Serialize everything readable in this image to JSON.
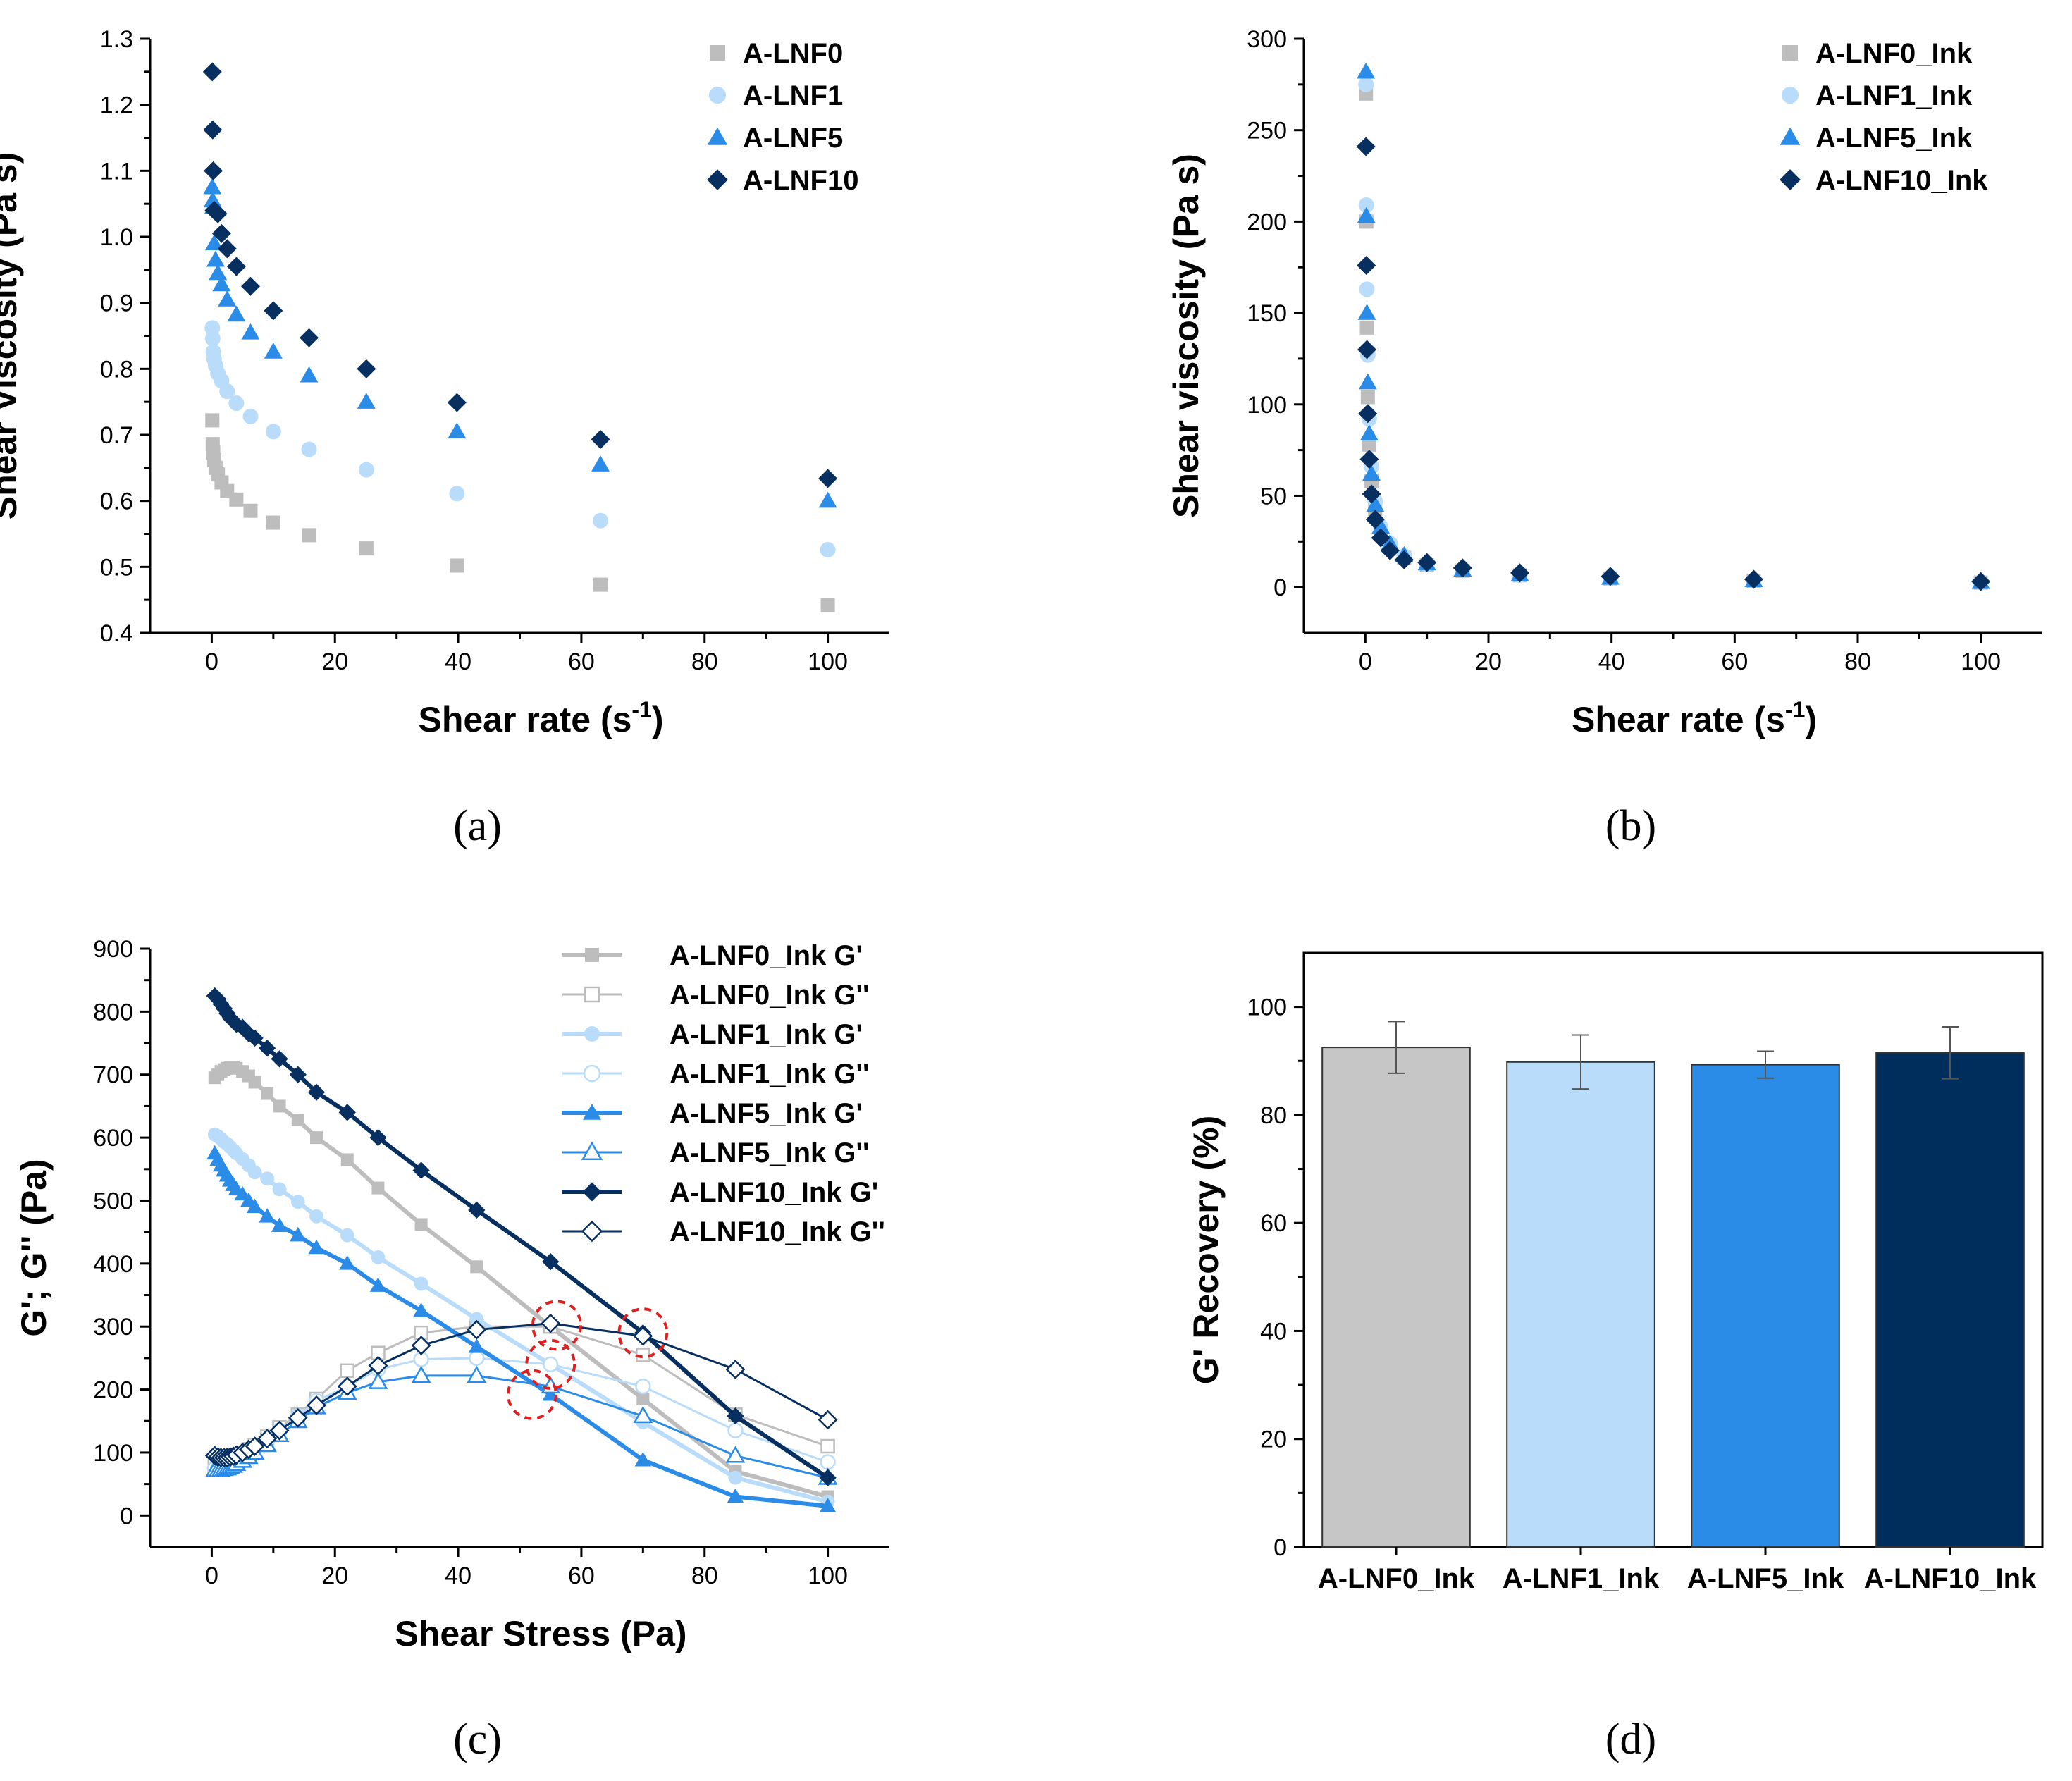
{
  "figure": {
    "colors": {
      "LNF0": "#bdbdbd",
      "LNF1": "#b9dcfa",
      "LNF5": "#2b8ce8",
      "LNF10": "#072f5f",
      "circle": "#e02020"
    }
  },
  "chart_data": [
    {
      "id": "a",
      "type": "scatter",
      "panel_label": "(a)",
      "xlabel": "Shear rate (s",
      "xlabel_sup": "-1",
      "xlabel_end": ")",
      "ylabel": "Shear Viscosity (Pa s)",
      "xlim": [
        -10,
        110
      ],
      "ylim": [
        0.4,
        1.3
      ],
      "xticks": [
        0,
        20,
        40,
        60,
        80,
        100
      ],
      "xtick_labels": [
        "0",
        "20",
        "40",
        "60",
        "80",
        "100"
      ],
      "yticks": [
        0.4,
        0.5,
        0.6,
        0.7,
        0.8,
        0.9,
        1.0,
        1.1,
        1.2,
        1.3
      ],
      "ytick_labels": [
        "0.4",
        "0.5",
        "0.6",
        "0.7",
        "0.8",
        "0.9",
        "1.0",
        "1.1",
        "1.2",
        "1.3"
      ],
      "legend_position": "top-right",
      "series": [
        {
          "name": "A-LNF0",
          "marker": "square",
          "color": "#bdbdbd",
          "x": [
            0.1,
            0.16,
            0.25,
            0.4,
            0.63,
            1,
            1.6,
            2.5,
            4,
            6.3,
            10,
            15.8,
            25.1,
            39.8,
            63.1,
            100
          ],
          "y": [
            0.722,
            0.686,
            0.673,
            0.662,
            0.65,
            0.64,
            0.628,
            0.615,
            0.602,
            0.585,
            0.567,
            0.548,
            0.528,
            0.502,
            0.473,
            0.442
          ]
        },
        {
          "name": "A-LNF1",
          "marker": "circle",
          "color": "#b9dcfa",
          "x": [
            0.1,
            0.16,
            0.25,
            0.4,
            0.63,
            1,
            1.6,
            2.5,
            4,
            6.3,
            10,
            15.8,
            25.1,
            39.8,
            63.1,
            100
          ],
          "y": [
            0.862,
            0.846,
            0.826,
            0.815,
            0.805,
            0.793,
            0.782,
            0.766,
            0.748,
            0.728,
            0.705,
            0.678,
            0.647,
            0.611,
            0.57,
            0.526
          ]
        },
        {
          "name": "A-LNF5",
          "marker": "triangle",
          "color": "#2b8ce8",
          "x": [
            0.1,
            0.16,
            0.25,
            0.4,
            0.63,
            1,
            1.6,
            2.5,
            4,
            6.3,
            10,
            15.8,
            25.1,
            39.8,
            63.1,
            100
          ],
          "y": [
            1.075,
            1.055,
            1.045,
            0.99,
            0.965,
            0.945,
            0.928,
            0.905,
            0.882,
            0.855,
            0.826,
            0.79,
            0.75,
            0.705,
            0.655,
            0.6
          ]
        },
        {
          "name": "A-LNF10",
          "marker": "diamond",
          "color": "#072f5f",
          "x": [
            0.1,
            0.16,
            0.25,
            0.4,
            0.63,
            1,
            1.6,
            2.5,
            4,
            6.3,
            10,
            15.8,
            25.1,
            39.8,
            63.1,
            100
          ],
          "y": [
            1.25,
            1.162,
            1.1,
            1.04,
            1.038,
            1.035,
            1.005,
            0.982,
            0.955,
            0.925,
            0.888,
            0.847,
            0.8,
            0.749,
            0.693,
            0.634
          ]
        }
      ]
    },
    {
      "id": "b",
      "type": "scatter",
      "panel_label": "(b)",
      "xlabel": "Shear rate (s",
      "xlabel_sup": "-1",
      "xlabel_end": ")",
      "ylabel": "Shear viscosity (Pa s)",
      "xlim": [
        -10,
        110
      ],
      "ylim": [
        -25,
        300
      ],
      "xticks": [
        0,
        20,
        40,
        60,
        80,
        100
      ],
      "xtick_labels": [
        "0",
        "20",
        "40",
        "60",
        "80",
        "100"
      ],
      "yticks": [
        0,
        50,
        100,
        150,
        200,
        250,
        300
      ],
      "ytick_labels": [
        "0",
        "50",
        "100",
        "150",
        "200",
        "250",
        "300"
      ],
      "legend_position": "top-right",
      "series": [
        {
          "name": "A-LNF0_Ink",
          "marker": "square",
          "color": "#bdbdbd",
          "x": [
            0.1,
            0.16,
            0.25,
            0.4,
            0.63,
            1,
            1.6,
            2.5,
            4,
            6.3,
            10,
            15.8,
            25.1,
            39.8,
            63.1,
            100
          ],
          "y": [
            270,
            200,
            142,
            104,
            78,
            58,
            42,
            30,
            22,
            16,
            12,
            9,
            6.5,
            4.8,
            3.5,
            2.5
          ]
        },
        {
          "name": "A-LNF1_Ink",
          "marker": "circle",
          "color": "#b9dcfa",
          "x": [
            0.1,
            0.16,
            0.25,
            0.4,
            0.63,
            1,
            1.6,
            2.5,
            4,
            6.3,
            10,
            15.8,
            25.1,
            39.8,
            63.1,
            100
          ],
          "y": [
            275,
            209,
            163,
            127,
            92,
            66,
            47,
            33,
            24,
            17,
            12.5,
            9.2,
            6.7,
            4.9,
            3.6,
            2.6
          ]
        },
        {
          "name": "A-LNF5_Ink",
          "marker": "triangle",
          "color": "#2b8ce8",
          "x": [
            0.1,
            0.16,
            0.25,
            0.4,
            0.63,
            1,
            1.6,
            2.5,
            4,
            6.3,
            10,
            15.8,
            25.1,
            39.8,
            63.1,
            100
          ],
          "y": [
            282,
            203,
            150,
            112,
            84,
            62,
            45,
            33,
            24,
            17.5,
            13,
            9.6,
            7,
            5.1,
            3.8,
            2.8
          ]
        },
        {
          "name": "A-LNF10_Ink",
          "marker": "diamond",
          "color": "#072f5f",
          "x": [
            0.1,
            0.16,
            0.25,
            0.4,
            0.63,
            1,
            1.6,
            2.5,
            4,
            6.3,
            10,
            15.8,
            25.1,
            39.8,
            63.1,
            100
          ],
          "y": [
            241,
            176,
            130,
            95,
            70,
            51,
            37,
            27,
            20,
            15,
            13.5,
            10.5,
            7.8,
            5.9,
            4.3,
            3.1
          ]
        }
      ]
    },
    {
      "id": "c",
      "type": "line",
      "panel_label": "(c)",
      "xlabel": "Shear Stress (Pa)",
      "ylabel": "G'; G'' (Pa)",
      "xlim": [
        -10,
        110
      ],
      "ylim": [
        -50,
        900
      ],
      "xticks": [
        0,
        20,
        40,
        60,
        80,
        100
      ],
      "xtick_labels": [
        "0",
        "20",
        "40",
        "60",
        "80",
        "100"
      ],
      "yticks": [
        0,
        100,
        200,
        300,
        400,
        500,
        600,
        700,
        800,
        900
      ],
      "ytick_labels": [
        "0",
        "100",
        "200",
        "300",
        "400",
        "500",
        "600",
        "700",
        "800",
        "900"
      ],
      "legend_position": "top-right",
      "crossover_circles": [
        {
          "x": 52,
          "y": 192
        },
        {
          "x": 55,
          "y": 240
        },
        {
          "x": 56,
          "y": 302
        },
        {
          "x": 70,
          "y": 290
        }
      ],
      "series": [
        {
          "name": "A-LNF0_Ink G'",
          "marker": "square",
          "filled": true,
          "color": "#bdbdbd",
          "width": 6,
          "x": [
            0.5,
            1,
            1.5,
            2,
            2.5,
            3,
            3.5,
            4,
            5,
            6,
            7,
            9,
            11,
            14,
            17,
            22,
            27,
            34,
            43,
            55,
            70,
            85,
            100
          ],
          "y": [
            695,
            700,
            705,
            708,
            710,
            712,
            712,
            710,
            705,
            698,
            688,
            670,
            650,
            628,
            600,
            565,
            520,
            462,
            395,
            300,
            185,
            70,
            30
          ]
        },
        {
          "name": "A-LNF0_Ink G''",
          "marker": "square",
          "filled": false,
          "color": "#bdbdbd",
          "width": 3,
          "x": [
            0.5,
            1,
            1.5,
            2,
            2.5,
            3,
            3.5,
            4,
            5,
            6,
            7,
            9,
            11,
            14,
            17,
            22,
            27,
            34,
            43,
            55,
            70,
            85,
            100
          ],
          "y": [
            80,
            80,
            82,
            83,
            85,
            87,
            90,
            93,
            98,
            105,
            112,
            125,
            140,
            160,
            185,
            230,
            258,
            290,
            300,
            300,
            255,
            160,
            110
          ]
        },
        {
          "name": "A-LNF1_Ink G'",
          "marker": "circle",
          "filled": true,
          "color": "#b9dcfa",
          "width": 6,
          "x": [
            0.5,
            1,
            1.5,
            2,
            2.5,
            3,
            3.5,
            4,
            5,
            6,
            7,
            9,
            11,
            14,
            17,
            22,
            27,
            34,
            43,
            55,
            70,
            85,
            100
          ],
          "y": [
            605,
            602,
            598,
            593,
            590,
            585,
            580,
            575,
            566,
            556,
            545,
            535,
            518,
            498,
            475,
            445,
            410,
            368,
            312,
            240,
            148,
            60,
            22
          ]
        },
        {
          "name": "A-LNF1_Ink G''",
          "marker": "circle",
          "filled": false,
          "color": "#b9dcfa",
          "width": 3,
          "x": [
            0.5,
            1,
            1.5,
            2,
            2.5,
            3,
            3.5,
            4,
            5,
            6,
            7,
            9,
            11,
            14,
            17,
            22,
            27,
            34,
            43,
            55,
            70,
            85,
            100
          ],
          "y": [
            75,
            75,
            76,
            78,
            80,
            82,
            85,
            88,
            93,
            100,
            107,
            118,
            135,
            158,
            182,
            205,
            232,
            248,
            250,
            240,
            205,
            135,
            85
          ]
        },
        {
          "name": "A-LNF5_Ink G'",
          "marker": "triangle",
          "filled": true,
          "color": "#2b8ce8",
          "width": 6,
          "x": [
            0.5,
            1,
            1.5,
            2,
            2.5,
            3,
            3.5,
            4,
            5,
            6,
            7,
            9,
            11,
            14,
            17,
            22,
            27,
            34,
            43,
            55,
            70,
            85,
            100
          ],
          "y": [
            575,
            565,
            556,
            548,
            540,
            532,
            525,
            518,
            510,
            500,
            490,
            475,
            460,
            445,
            425,
            400,
            365,
            325,
            268,
            192,
            88,
            30,
            15
          ]
        },
        {
          "name": "A-LNF5_Ink G''",
          "marker": "triangle",
          "filled": false,
          "color": "#2b8ce8",
          "width": 3,
          "x": [
            0.5,
            1,
            1.5,
            2,
            2.5,
            3,
            3.5,
            4,
            5,
            6,
            7,
            9,
            11,
            14,
            17,
            22,
            27,
            34,
            43,
            55,
            70,
            85,
            100
          ],
          "y": [
            72,
            72,
            73,
            74,
            75,
            77,
            79,
            82,
            87,
            93,
            100,
            112,
            128,
            150,
            172,
            195,
            212,
            222,
            222,
            205,
            158,
            95,
            60
          ]
        },
        {
          "name": "A-LNF10_Ink G'",
          "marker": "diamond",
          "filled": true,
          "color": "#072f5f",
          "width": 6,
          "x": [
            0.5,
            1,
            1.5,
            2,
            2.5,
            3,
            3.5,
            4,
            5,
            6,
            7,
            9,
            11,
            14,
            17,
            22,
            27,
            34,
            43,
            55,
            70,
            85,
            100
          ],
          "y": [
            825,
            820,
            812,
            805,
            797,
            790,
            785,
            780,
            775,
            765,
            758,
            742,
            725,
            700,
            672,
            640,
            600,
            548,
            485,
            403,
            290,
            158,
            60
          ]
        },
        {
          "name": "A-LNF10_Ink G''",
          "marker": "diamond",
          "filled": false,
          "color": "#072f5f",
          "width": 3,
          "x": [
            0.5,
            1,
            1.5,
            2,
            2.5,
            3,
            3.5,
            4,
            5,
            6,
            7,
            9,
            11,
            14,
            17,
            22,
            27,
            34,
            43,
            55,
            70,
            85,
            100
          ],
          "y": [
            95,
            93,
            92,
            92,
            92,
            93,
            94,
            96,
            100,
            105,
            110,
            122,
            135,
            155,
            175,
            205,
            238,
            270,
            295,
            305,
            285,
            232,
            152
          ]
        }
      ]
    },
    {
      "id": "d",
      "type": "bar",
      "panel_label": "(d)",
      "xlabel": "",
      "ylabel": "G' Recovery (%)",
      "ylim": [
        0,
        110
      ],
      "yticks": [
        0,
        20,
        40,
        60,
        80,
        100
      ],
      "ytick_labels": [
        "0",
        "20",
        "40",
        "60",
        "80",
        "100"
      ],
      "categories": [
        "A-LNF0_Ink",
        "A-LNF1_Ink",
        "A-LNF5_Ink",
        "A-LNF10_Ink"
      ],
      "values": [
        92.5,
        89.8,
        89.3,
        91.5
      ],
      "errors": [
        4.8,
        5.0,
        2.5,
        4.8
      ],
      "colors": [
        "#c6c6c6",
        "#b9dcfa",
        "#2b8ce8",
        "#002e5c"
      ]
    }
  ]
}
